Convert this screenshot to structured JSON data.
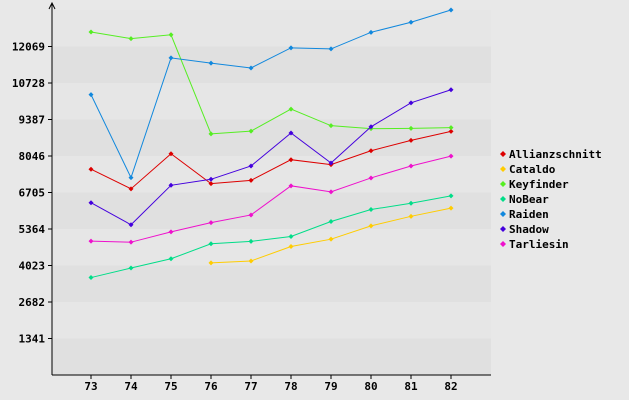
{
  "chart_data": {
    "type": "line",
    "title": "",
    "xlabel": "",
    "ylabel": "",
    "x": [
      "73",
      "74",
      "75",
      "76",
      "77",
      "78",
      "79",
      "80",
      "81",
      "82"
    ],
    "y_ticks": [
      "1341",
      "2682",
      "4023",
      "5364",
      "6705",
      "8046",
      "9387",
      "10728",
      "12069"
    ],
    "ylim": [
      0,
      13410
    ],
    "grid": "horizontal bands",
    "legend_position": "right",
    "series": [
      {
        "name": "Allianzschnitt",
        "color": "#dd0000",
        "values": [
          7560,
          6840,
          8130,
          7030,
          7150,
          7910,
          7730,
          8240,
          8620,
          8950
        ]
      },
      {
        "name": "Cataldo",
        "color": "#ffcc00",
        "values": [
          null,
          null,
          null,
          4120,
          4190,
          4720,
          4990,
          5480,
          5830,
          6130
        ]
      },
      {
        "name": "Keyfinder",
        "color": "#55ee22",
        "values": [
          12600,
          12360,
          12500,
          8860,
          8960,
          9770,
          9160,
          9050,
          9060,
          9090
        ]
      },
      {
        "name": "NoBear",
        "color": "#00dd88",
        "values": [
          3580,
          3930,
          4270,
          4820,
          4910,
          5090,
          5640,
          6080,
          6310,
          6580
        ]
      },
      {
        "name": "Raiden",
        "color": "#1188dd",
        "values": [
          10300,
          7250,
          11650,
          11460,
          11280,
          12020,
          11980,
          12590,
          12960,
          13410
        ]
      },
      {
        "name": "Shadow",
        "color": "#4400dd",
        "values": [
          6330,
          5520,
          6970,
          7190,
          7680,
          8890,
          7790,
          9120,
          10000,
          10480
        ]
      },
      {
        "name": "Tarliesin",
        "color": "#ee11cc",
        "values": [
          4920,
          4880,
          5260,
          5600,
          5880,
          6950,
          6730,
          7240,
          7680,
          8040
        ]
      }
    ]
  }
}
